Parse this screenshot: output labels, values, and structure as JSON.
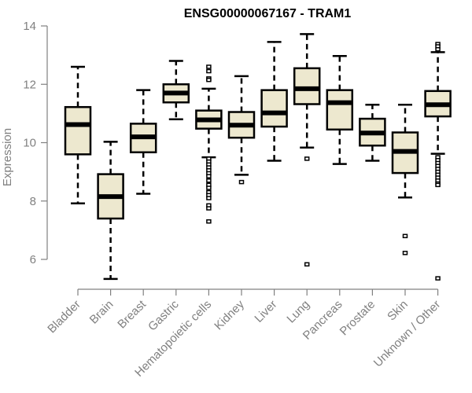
{
  "chart_data": {
    "type": "boxplot",
    "title": "ENSG00000067167 - TRAM1",
    "xlabel": "",
    "ylabel": "Expression",
    "ylim": [
      5.0,
      14.0
    ],
    "yticks": [
      6,
      8,
      10,
      12,
      14
    ],
    "grid": false,
    "box_fill": "#ede8cf",
    "categories": [
      "Bladder",
      "Brain",
      "Breast",
      "Gastric",
      "Hematopoietic cells",
      "Kidney",
      "Liver",
      "Lung",
      "Pancreas",
      "Prostate",
      "Skin",
      "Unknown / Other"
    ],
    "boxes": [
      {
        "name": "Bladder",
        "whisker_low": 7.92,
        "q1": 9.6,
        "median": 10.62,
        "q3": 11.22,
        "whisker_high": 12.6,
        "outliers": []
      },
      {
        "name": "Brain",
        "whisker_low": 5.33,
        "q1": 7.4,
        "median": 8.15,
        "q3": 8.92,
        "whisker_high": 10.03,
        "outliers": []
      },
      {
        "name": "Breast",
        "whisker_low": 8.25,
        "q1": 9.67,
        "median": 10.2,
        "q3": 10.65,
        "whisker_high": 11.8,
        "outliers": []
      },
      {
        "name": "Gastric",
        "whisker_low": 10.8,
        "q1": 11.38,
        "median": 11.7,
        "q3": 12.0,
        "whisker_high": 12.8,
        "outliers": []
      },
      {
        "name": "Hematopoietic cells",
        "whisker_low": 9.5,
        "q1": 10.48,
        "median": 10.78,
        "q3": 11.1,
        "whisker_high": 11.85,
        "outliers": [
          12.6,
          12.45,
          12.2,
          12.15,
          9.45,
          9.35,
          9.25,
          9.15,
          9.05,
          8.95,
          8.85,
          8.7,
          8.55,
          8.45,
          8.3,
          8.2,
          8.1,
          7.85,
          7.75,
          7.3
        ]
      },
      {
        "name": "Kidney",
        "whisker_low": 8.9,
        "q1": 10.17,
        "median": 10.6,
        "q3": 11.05,
        "whisker_high": 12.28,
        "outliers": [
          8.65
        ]
      },
      {
        "name": "Liver",
        "whisker_low": 9.38,
        "q1": 10.55,
        "median": 11.02,
        "q3": 11.8,
        "whisker_high": 13.45,
        "outliers": []
      },
      {
        "name": "Lung",
        "whisker_low": 9.83,
        "q1": 11.32,
        "median": 11.85,
        "q3": 12.55,
        "whisker_high": 13.72,
        "outliers": [
          9.45,
          5.83
        ]
      },
      {
        "name": "Pancreas",
        "whisker_low": 9.27,
        "q1": 10.45,
        "median": 11.37,
        "q3": 11.8,
        "whisker_high": 12.97,
        "outliers": []
      },
      {
        "name": "Prostate",
        "whisker_low": 9.38,
        "q1": 9.9,
        "median": 10.33,
        "q3": 10.82,
        "whisker_high": 11.3,
        "outliers": []
      },
      {
        "name": "Skin",
        "whisker_low": 8.12,
        "q1": 8.96,
        "median": 9.7,
        "q3": 10.35,
        "whisker_high": 11.3,
        "outliers": [
          6.8,
          6.22
        ]
      },
      {
        "name": "Unknown / Other",
        "whisker_low": 9.62,
        "q1": 10.9,
        "median": 11.3,
        "q3": 11.77,
        "whisker_high": 13.1,
        "outliers": [
          13.38,
          13.3,
          13.2,
          9.5,
          9.4,
          9.3,
          9.2,
          9.1,
          9.0,
          8.9,
          8.8,
          8.7,
          8.6,
          8.55,
          5.35
        ]
      }
    ]
  }
}
